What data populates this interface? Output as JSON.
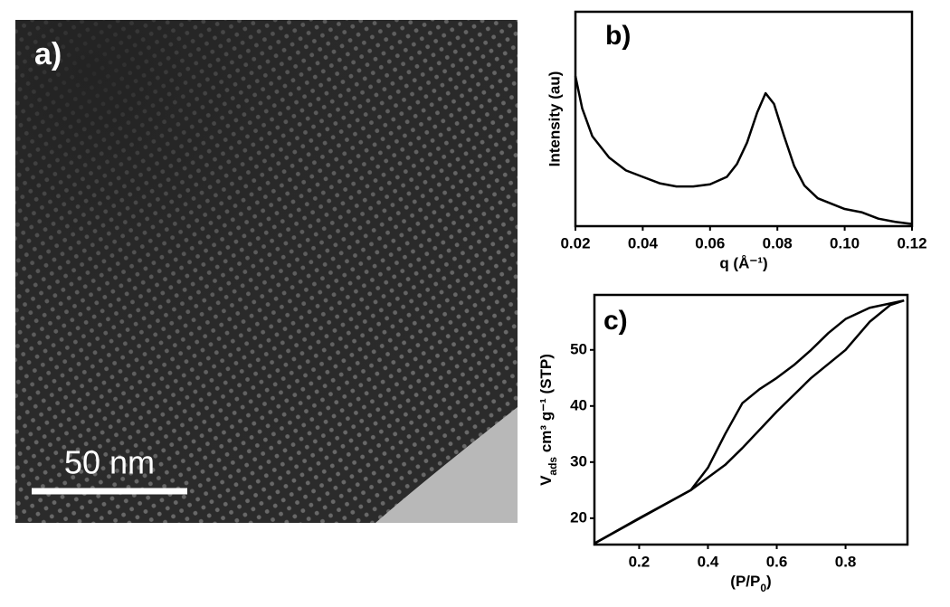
{
  "image": {
    "label": "a)",
    "scale_bar": "50 nm"
  },
  "chart_data": [
    {
      "type": "line",
      "label": "b)",
      "ylabel": "Intensity (au)",
      "xlabel": "q (Å⁻¹)",
      "xlim": [
        0.02,
        0.12
      ],
      "ylim": [
        0,
        100
      ],
      "xticks": [
        0.02,
        0.04,
        0.06,
        0.08,
        {
          "value": 0.1,
          "label": "0.10"
        },
        0.12
      ],
      "color": "#000000",
      "series": [
        {
          "color": "#000000",
          "x": [
            0.02,
            0.022,
            0.025,
            0.03,
            0.035,
            0.04,
            0.045,
            0.05,
            0.055,
            0.06,
            0.065,
            0.068,
            0.071,
            0.074,
            0.0765,
            0.079,
            0.082,
            0.085,
            0.088,
            0.092,
            0.1,
            0.105,
            0.11,
            0.115,
            0.12
          ],
          "values": [
            70,
            55,
            42,
            32,
            26,
            23,
            20,
            18.5,
            18.5,
            19.5,
            23,
            29,
            39,
            53,
            62,
            57,
            42,
            28,
            19,
            13,
            8,
            6.5,
            3.5,
            2,
            1
          ]
        }
      ]
    },
    {
      "type": "line",
      "label": "c)",
      "ylabel": [
        "V",
        "ads",
        " cm³ g⁻¹ (STP)"
      ],
      "xlabel": [
        "(P/P",
        "0",
        ")"
      ],
      "xlim": [
        0.07,
        0.98
      ],
      "ylim": [
        15.3,
        59.8
      ],
      "xticks": [
        0.2,
        0.4,
        0.6,
        0.8
      ],
      "yticks": [
        20,
        30,
        40,
        50
      ],
      "series": [
        {
          "color": "#000000",
          "x": [
            0.07,
            0.2,
            0.35,
            0.45,
            0.5,
            0.6,
            0.7,
            0.8,
            0.87,
            0.93,
            0.97
          ],
          "values": [
            15.5,
            20,
            25,
            29.5,
            32.5,
            39,
            45,
            50,
            55,
            58,
            58.8
          ]
        },
        {
          "color": "#000000",
          "x": [
            0.07,
            0.35,
            0.4,
            0.45,
            0.5,
            0.55,
            0.6,
            0.65,
            0.7,
            0.75,
            0.8,
            0.87,
            0.97
          ],
          "values": [
            15.5,
            25,
            29,
            35,
            40.5,
            43,
            45,
            47.3,
            50,
            53,
            55.5,
            57.5,
            58.8
          ]
        }
      ]
    }
  ]
}
